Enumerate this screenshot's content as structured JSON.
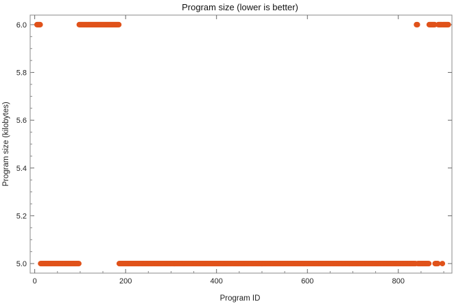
{
  "chart_data": {
    "type": "scatter",
    "title": "Program size (lower is better)",
    "xlabel": "Program ID",
    "ylabel": "Program size (kilobytes)",
    "xlim": [
      -10,
      918
    ],
    "ylim": [
      4.96,
      6.04
    ],
    "x_ticks": [
      0,
      200,
      400,
      600,
      800
    ],
    "x_tick_labels": [
      "0",
      "200",
      "400",
      "600",
      "800"
    ],
    "y_ticks": [
      5.0,
      5.2,
      5.4,
      5.6,
      5.8,
      6.0
    ],
    "y_tick_labels": [
      "5.0",
      "5.2",
      "5.4",
      "5.6",
      "5.8",
      "6.0"
    ],
    "grid": false,
    "marker_color": "#e0521a",
    "series": [
      {
        "segments": [
          {
            "x_from": 5,
            "x_to": 12,
            "y": 6.0
          },
          {
            "x_from": 98,
            "x_to": 185,
            "y": 6.0
          },
          {
            "x_from": 840,
            "x_to": 842,
            "y": 6.0
          },
          {
            "x_from": 868,
            "x_to": 880,
            "y": 6.0
          },
          {
            "x_from": 888,
            "x_to": 896,
            "y": 6.0
          },
          {
            "x_from": 898,
            "x_to": 910,
            "y": 6.0
          },
          {
            "x_from": 13,
            "x_to": 97,
            "y": 5.0
          },
          {
            "x_from": 186,
            "x_to": 838,
            "y": 5.0
          },
          {
            "x_from": 843,
            "x_to": 867,
            "y": 5.0
          },
          {
            "x_from": 881,
            "x_to": 887,
            "y": 5.0
          },
          {
            "x_from": 897,
            "x_to": 897,
            "y": 5.0
          }
        ]
      }
    ]
  }
}
